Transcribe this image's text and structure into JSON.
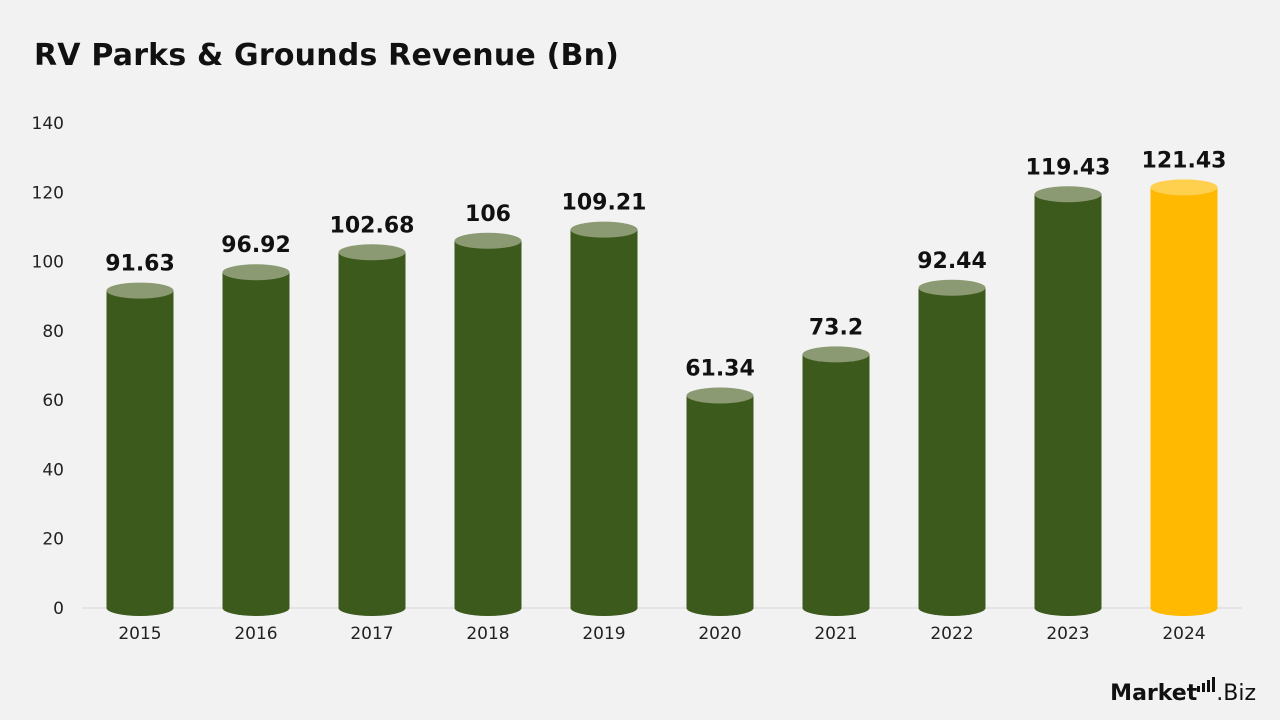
{
  "title": "RV Parks & Grounds Revenue (Bn)",
  "logo": {
    "brand": "Market",
    "suffix": ".Biz"
  },
  "colors": {
    "bar": "#3b5a1c",
    "bar_top": "#8b9a72",
    "highlight": "#ffb900",
    "highlight_top": "#ffd04d",
    "axis_text": "#222222",
    "label_text": "#111111"
  },
  "chart_data": {
    "type": "bar",
    "title": "RV Parks & Grounds Revenue (Bn)",
    "categories": [
      "2015",
      "2016",
      "2017",
      "2018",
      "2019",
      "2020",
      "2021",
      "2022",
      "2023",
      "2024"
    ],
    "values": [
      91.63,
      96.92,
      102.68,
      106,
      109.21,
      61.34,
      73.2,
      92.44,
      119.43,
      121.43
    ],
    "value_labels": [
      "91.63",
      "96.92",
      "102.68",
      "106",
      "109.21",
      "61.34",
      "73.2",
      "92.44",
      "119.43",
      "121.43"
    ],
    "highlight_index": 9,
    "ylim": [
      0,
      140
    ],
    "yticks": [
      "0",
      "20",
      "40",
      "60",
      "80",
      "100",
      "120",
      "140"
    ],
    "xlabel": "",
    "ylabel": "",
    "grid": false,
    "legend": "none"
  }
}
